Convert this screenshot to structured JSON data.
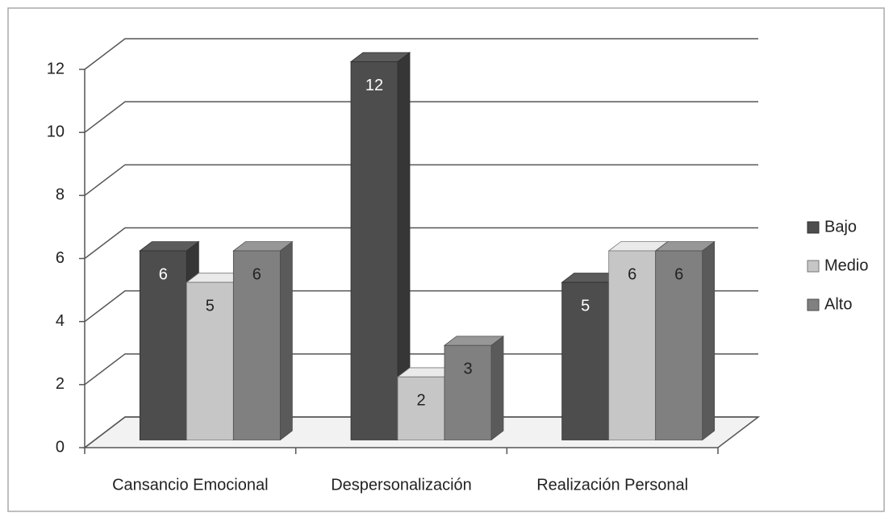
{
  "chart_data": {
    "type": "bar3d",
    "categories": [
      "Cansancio Emocional",
      "Despersonalización",
      "Realización Personal"
    ],
    "series": [
      {
        "name": "Bajo",
        "color": "#4d4d4d",
        "values": [
          6,
          12,
          5
        ]
      },
      {
        "name": "Medio",
        "color": "#c6c6c6",
        "values": [
          5,
          2,
          6
        ]
      },
      {
        "name": "Alto",
        "color": "#808080",
        "values": [
          6,
          3,
          6
        ]
      }
    ],
    "ylim": [
      0,
      12
    ],
    "yticks": [
      0,
      2,
      4,
      6,
      8,
      10,
      12
    ],
    "grid": true,
    "legend": "right"
  }
}
